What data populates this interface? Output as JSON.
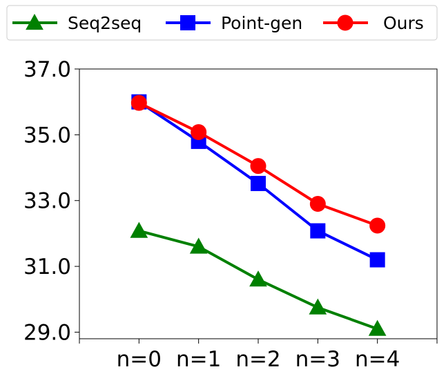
{
  "chart_data": {
    "type": "line",
    "title": "",
    "xlabel": "",
    "ylabel": "",
    "categories": [
      "n=0",
      "n=1",
      "n=2",
      "n=3",
      "n=4"
    ],
    "y_ticks": [
      "29.0",
      "31.0",
      "33.0",
      "35.0",
      "37.0"
    ],
    "ylim": [
      28.8,
      37.0
    ],
    "grid": false,
    "legend_position": "top",
    "series": [
      {
        "name": "Seq2seq",
        "color": "#008000",
        "marker": "triangle",
        "values": [
          32.08,
          31.6,
          30.6,
          29.75,
          29.1
        ]
      },
      {
        "name": "Point-gen",
        "color": "#0000ff",
        "marker": "square",
        "values": [
          36.0,
          34.8,
          33.52,
          32.08,
          31.2
        ]
      },
      {
        "name": "Ours",
        "color": "#ff0000",
        "marker": "circle",
        "values": [
          35.97,
          35.08,
          34.05,
          32.9,
          32.24
        ]
      }
    ]
  }
}
